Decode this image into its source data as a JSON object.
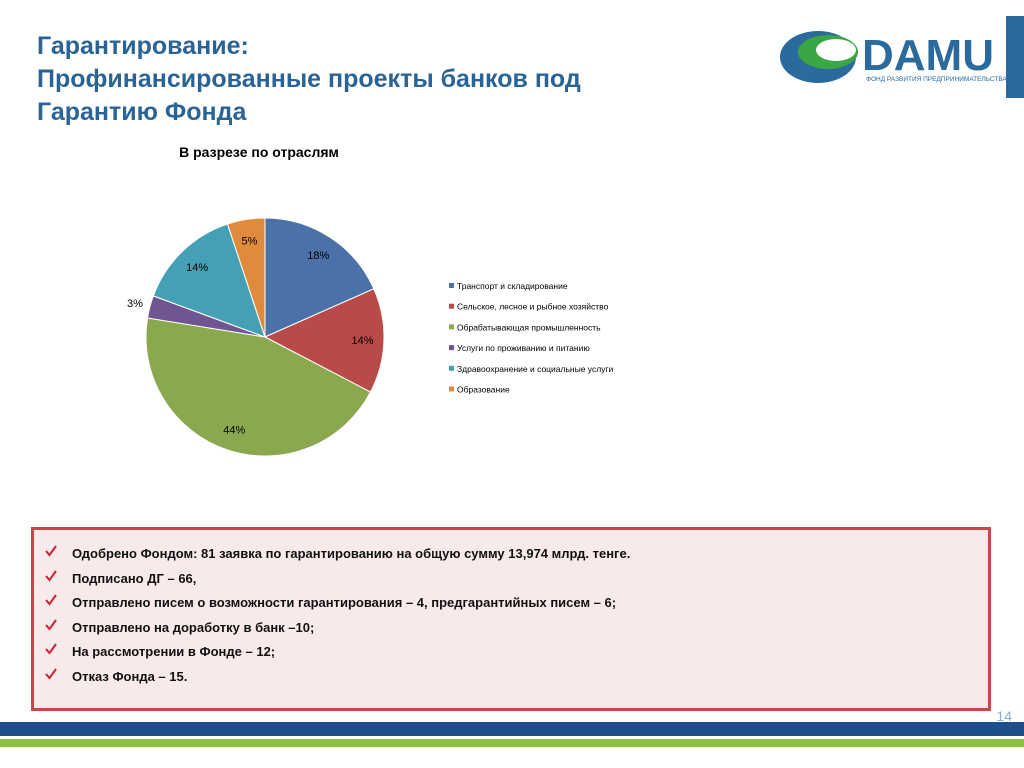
{
  "header": {
    "title_lines": [
      "Гарантирование:",
      "Профинансированные проекты банков под",
      "Гарантию Фонда"
    ]
  },
  "logo": {
    "name": "DAMU",
    "tagline": "ФОНД РАЗВИТИЯ ПРЕДПРИНИМАТЕЛЬСТВА"
  },
  "chart_data": {
    "type": "pie",
    "title": "В разрезе по отраслям",
    "categories": [
      "Транспорт и складирование",
      "Сельское, лесное и рыбное хозяйство",
      "Обрабатывающая промышленность",
      "Услуги по проживанию и питанию",
      "Здравоохранение и социальные услуги",
      "Образование"
    ],
    "values": [
      18,
      14,
      44,
      3,
      14,
      5
    ],
    "value_labels": [
      "18%",
      "14%",
      "44%",
      "3%",
      "14%",
      "5%"
    ],
    "colors": [
      "#4a72a8",
      "#b84a47",
      "#8aa84e",
      "#6f5592",
      "#45a0b5",
      "#e08a3c"
    ],
    "legend": "right"
  },
  "bullets": [
    "Одобрено Фондом: 81 заявка по гарантированию на общую сумму  13,974 млрд. тенге.",
    "Подписано ДГ – 66,",
    "Отправлено писем о возможности гарантирования – 4, предгарантийных писем – 6;",
    "Отправлено на доработку в банк –10;",
    "На рассмотрении в Фонде – 12;",
    "Отказ Фонда –  15."
  ],
  "footer": {
    "page_number": "14"
  }
}
